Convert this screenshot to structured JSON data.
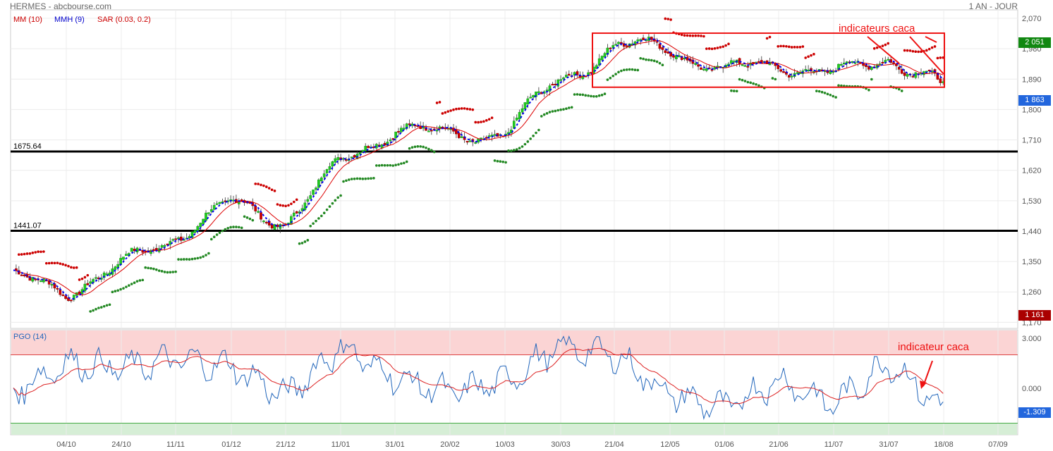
{
  "header": {
    "title": "HERMES - abcbourse.com",
    "period": "1 AN - JOUR"
  },
  "legend": {
    "mm": "MM (10)",
    "mmh": "MMH (9)",
    "sar": "SAR (0.03, 0.2)",
    "pgo": "PGO (14)"
  },
  "price_tags": {
    "high": "2 051",
    "last": "1 863",
    "low": "1 161",
    "pgo_last": "-1.309"
  },
  "colors": {
    "up": "#22cc22",
    "down": "#cc0000",
    "mm": "#dd0000",
    "mmh": "#0000ee",
    "sar_up": "#228822",
    "sar_down": "#cc0000",
    "pgo_line": "#2266bb",
    "pgo_signal": "#dd2222",
    "tag_green": "#118811",
    "tag_blue": "#2266dd",
    "tag_red": "#aa0000"
  },
  "annotations": {
    "main": "indicateurs caca",
    "pgo": "indicateur caca"
  },
  "chart_data": [
    {
      "type": "candlestick",
      "x_ticks": [
        "04/10",
        "24/10",
        "11/11",
        "01/12",
        "21/12",
        "11/01",
        "31/01",
        "20/02",
        "10/03",
        "30/03",
        "21/04",
        "12/05",
        "01/06",
        "21/06",
        "11/07",
        "31/07",
        "18/08",
        "07/09"
      ],
      "y_ticks": [
        2070,
        1980,
        1890,
        1800,
        1710,
        1620,
        1530,
        1440,
        1350,
        1260,
        1170
      ],
      "ylim": [
        1152,
        2095
      ],
      "support_lines": [
        {
          "label": "1675.64",
          "value": 1675.64
        },
        {
          "label": "1441.07",
          "value": 1441.07
        }
      ],
      "range_box": {
        "x_start": "13/04",
        "x_end": "18/08",
        "y_low": 1866,
        "y_high": 2026
      },
      "indicators": [
        "MM (10)",
        "MMH (9)",
        "SAR (0.03, 0.2)"
      ],
      "series": [
        {
          "name": "close",
          "x": [
            "15/09",
            "04/10",
            "24/10",
            "11/11",
            "01/12",
            "21/12",
            "11/01",
            "31/01",
            "20/02",
            "10/03",
            "30/03",
            "21/04",
            "12/05",
            "01/06",
            "21/06",
            "11/07",
            "31/07",
            "18/08"
          ],
          "values": [
            1300,
            1265,
            1335,
            1430,
            1520,
            1470,
            1640,
            1750,
            1720,
            1735,
            1890,
            1985,
            1985,
            1910,
            1940,
            1900,
            1960,
            1863
          ]
        }
      ]
    },
    {
      "type": "line",
      "title": "PGO (14)",
      "y_ticks": [
        3.0,
        0.0
      ],
      "ylim": [
        -2.8,
        3.5
      ],
      "zones": {
        "upper": 2.0,
        "lower": -2.1
      },
      "series": [
        {
          "name": "PGO (14)",
          "x": [
            "15/09",
            "04/10",
            "24/10",
            "11/11",
            "01/12",
            "21/12",
            "11/01",
            "31/01",
            "20/02",
            "10/03",
            "30/03",
            "21/04",
            "12/05",
            "01/06",
            "21/06",
            "11/07",
            "31/07",
            "18/08"
          ],
          "values": [
            -0.2,
            1.5,
            1.2,
            1.7,
            1.3,
            -0.5,
            2.5,
            0.6,
            -0.3,
            0.4,
            2.5,
            2.0,
            -0.4,
            -1.2,
            0.5,
            -1.0,
            1.6,
            -1.309
          ]
        }
      ]
    }
  ]
}
